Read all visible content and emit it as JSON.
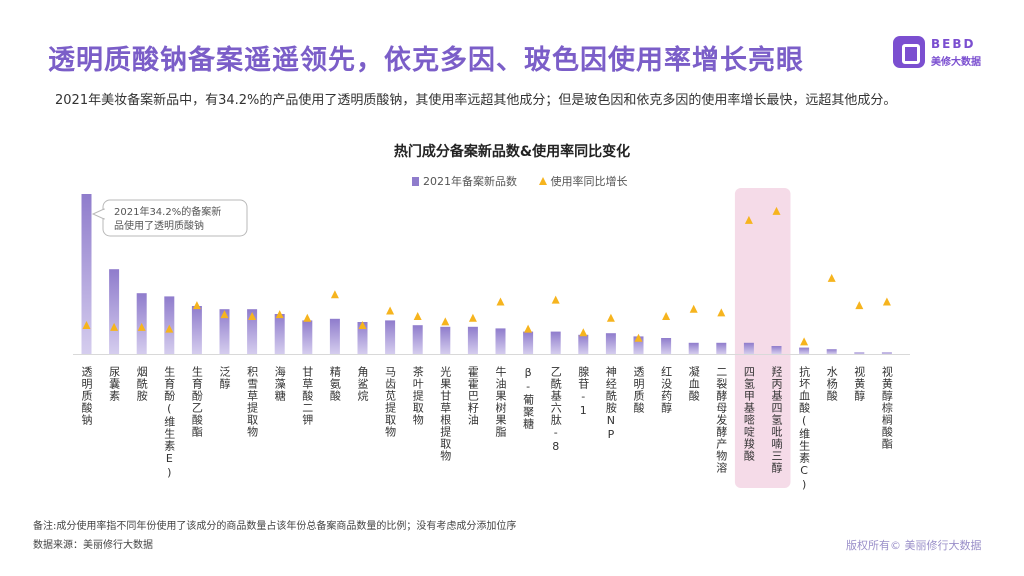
{
  "title": "透明质酸钠备案遥遥领先，依克多因、玻色因使用率增长亮眼",
  "logo": {
    "en": "BEBD",
    "cn": "美修大数据"
  },
  "description": "2021年美妆备案新品中，有34.2%的产品使用了透明质酸钠，其使用率远超其他成分；但是玻色因和依克多因的使用率增长最快，远超其他成分。",
  "footnote": "备注:成分使用率指不同年份使用了该成分的商品数量占该年份总备案商品数量的比例；没有考虑成分添加位序",
  "source": "数据来源：美丽修行大数据",
  "copyright": "版权所有© 美丽修行大数据",
  "colors": {
    "title": "#7b5ec8",
    "bar": "#8f7ccc",
    "triangle": "#f6b41e",
    "highlight": "#f2cfe0"
  },
  "chart_data": {
    "type": "bar",
    "title": "热门成分备案新品数&使用率同比变化",
    "legend": [
      "2021年备案新品数",
      "使用率同比增长"
    ],
    "legend_position": "top",
    "annotation": "2021年34.2%的备案新品使用了透明质酸钠",
    "highlighted_categories": [
      "四氢甲基嘧啶羧酸",
      "羟丙基四氢吡喃三醇"
    ],
    "categories": [
      "透明质酸钠",
      "尿囊素",
      "烟酰胺",
      "生育酚(维生素E)",
      "生育酚乙酸酯",
      "泛醇",
      "积雪草提取物",
      "海藻糖",
      "甘草酸二钾",
      "精氨酸",
      "角鲨烷",
      "马齿苋提取物",
      "茶叶提取物",
      "光果甘草根提取物",
      "霍霍巴籽油",
      "牛油果树果脂",
      "β-葡聚糖",
      "乙酰基六肽-8",
      "腺苷-1",
      "神经酰胺NP",
      "透明质酸",
      "红没药醇",
      "凝血酸",
      "二裂酵母发酵产物溶",
      "四氢甲基嘧啶羧酸",
      "羟丙基四氢吡喃三醇",
      "抗坏血酸(维生素C)",
      "水杨酸",
      "视黄醇",
      "视黄醇棕榈酸酯"
    ],
    "series": [
      {
        "name": "2021年备案新品数",
        "values": [
          100,
          53,
          38,
          36,
          30,
          28,
          28,
          25,
          21,
          22,
          20,
          21,
          18,
          17,
          17,
          16,
          14,
          14,
          12,
          13,
          11,
          10,
          7,
          7,
          7,
          5,
          4,
          3,
          1,
          1
        ]
      },
      {
        "name": "使用率同比增长",
        "values": [
          16,
          15,
          15,
          14,
          27,
          22,
          21,
          22,
          20,
          33,
          16,
          24,
          21,
          18,
          20,
          29,
          14,
          30,
          12,
          20,
          9,
          21,
          25,
          23,
          74,
          79,
          7,
          42,
          27,
          29
        ]
      }
    ]
  }
}
